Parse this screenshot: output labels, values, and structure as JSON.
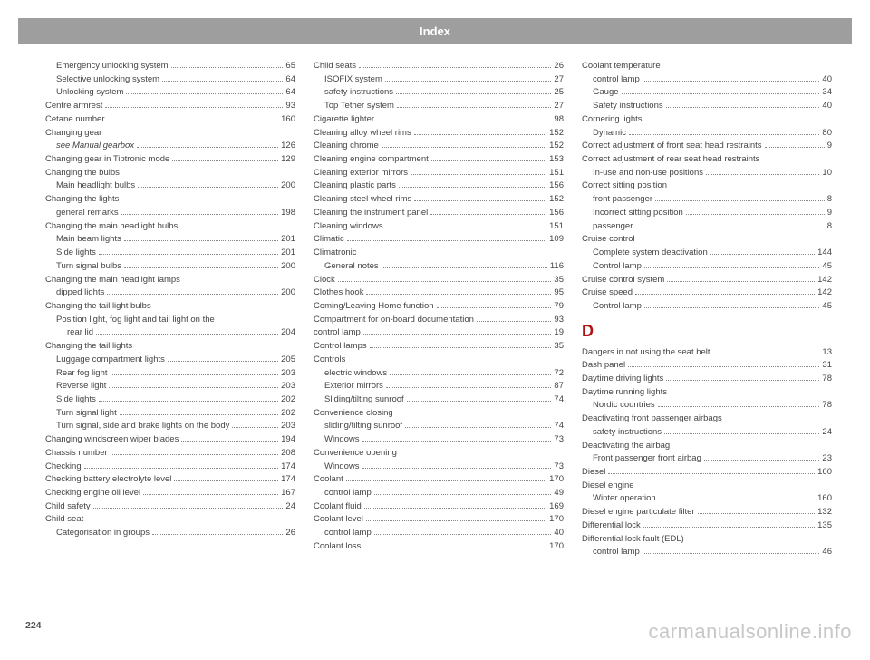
{
  "header": {
    "title": "Index"
  },
  "pageNumber": "224",
  "watermark": "carmanualsonline.info",
  "sectionLetter": "D",
  "columns": [
    {
      "entries": [
        {
          "label": "Emergency unlocking system",
          "page": "65",
          "indent": 1
        },
        {
          "label": "Selective unlocking system",
          "page": "64",
          "indent": 1
        },
        {
          "label": "Unlocking system",
          "page": "64",
          "indent": 1
        },
        {
          "label": "Centre armrest",
          "page": "93",
          "indent": 0
        },
        {
          "label": "Cetane number",
          "page": "160",
          "indent": 0
        },
        {
          "label": "Changing gear",
          "page": "",
          "indent": 0,
          "noPage": true
        },
        {
          "label": "see Manual gearbox",
          "page": "126",
          "indent": 1,
          "see": true
        },
        {
          "label": "Changing gear in Tiptronic mode",
          "page": "129",
          "indent": 0
        },
        {
          "label": "Changing the bulbs",
          "page": "",
          "indent": 0,
          "noPage": true
        },
        {
          "label": "Main headlight bulbs",
          "page": "200",
          "indent": 1
        },
        {
          "label": "Changing the lights",
          "page": "",
          "indent": 0,
          "noPage": true
        },
        {
          "label": "general remarks",
          "page": "198",
          "indent": 1
        },
        {
          "label": "Changing the main headlight bulbs",
          "page": "",
          "indent": 0,
          "noPage": true
        },
        {
          "label": "Main beam lights",
          "page": "201",
          "indent": 1
        },
        {
          "label": "Side lights",
          "page": "201",
          "indent": 1
        },
        {
          "label": "Turn signal bulbs",
          "page": "200",
          "indent": 1
        },
        {
          "label": "Changing the main headlight lamps",
          "page": "",
          "indent": 0,
          "noPage": true
        },
        {
          "label": "dipped lights",
          "page": "200",
          "indent": 1
        },
        {
          "label": "Changing the tail light bulbs",
          "page": "",
          "indent": 0,
          "noPage": true
        },
        {
          "label": "Position light, fog light and tail light on the",
          "page": "",
          "indent": 1,
          "noPage": true
        },
        {
          "label": "rear lid",
          "page": "204",
          "indent": 2
        },
        {
          "label": "Changing the tail lights",
          "page": "",
          "indent": 0,
          "noPage": true
        },
        {
          "label": "Luggage compartment lights",
          "page": "205",
          "indent": 1
        },
        {
          "label": "Rear fog light",
          "page": "203",
          "indent": 1
        },
        {
          "label": "Reverse light",
          "page": "203",
          "indent": 1
        },
        {
          "label": "Side lights",
          "page": "202",
          "indent": 1
        },
        {
          "label": "Turn signal light",
          "page": "202",
          "indent": 1
        },
        {
          "label": "Turn signal, side and brake lights on the body",
          "page": "203",
          "indent": 1
        },
        {
          "label": "Changing windscreen wiper blades",
          "page": "194",
          "indent": 0
        },
        {
          "label": "Chassis number",
          "page": "208",
          "indent": 0
        },
        {
          "label": "Checking",
          "page": "174",
          "indent": 0
        },
        {
          "label": "Checking battery electrolyte level",
          "page": "174",
          "indent": 0
        },
        {
          "label": "Checking engine oil level",
          "page": "167",
          "indent": 0
        },
        {
          "label": "Child safety",
          "page": "24",
          "indent": 0
        },
        {
          "label": "Child seat",
          "page": "",
          "indent": 0,
          "noPage": true
        },
        {
          "label": "Categorisation in groups",
          "page": "26",
          "indent": 1
        }
      ]
    },
    {
      "entries": [
        {
          "label": "Child seats",
          "page": "26",
          "indent": 0
        },
        {
          "label": "ISOFIX system",
          "page": "27",
          "indent": 1
        },
        {
          "label": "safety instructions",
          "page": "25",
          "indent": 1
        },
        {
          "label": "Top Tether system",
          "page": "27",
          "indent": 1
        },
        {
          "label": "Cigarette lighter",
          "page": "98",
          "indent": 0
        },
        {
          "label": "Cleaning alloy wheel rims",
          "page": "152",
          "indent": 0
        },
        {
          "label": "Cleaning chrome",
          "page": "152",
          "indent": 0
        },
        {
          "label": "Cleaning engine compartment",
          "page": "153",
          "indent": 0
        },
        {
          "label": "Cleaning exterior mirrors",
          "page": "151",
          "indent": 0
        },
        {
          "label": "Cleaning plastic parts",
          "page": "156",
          "indent": 0
        },
        {
          "label": "Cleaning steel wheel rims",
          "page": "152",
          "indent": 0
        },
        {
          "label": "Cleaning the instrument panel",
          "page": "156",
          "indent": 0
        },
        {
          "label": "Cleaning windows",
          "page": "151",
          "indent": 0
        },
        {
          "label": "Climatic",
          "page": "109",
          "indent": 0
        },
        {
          "label": "Climatronic",
          "page": "",
          "indent": 0,
          "noPage": true
        },
        {
          "label": "General notes",
          "page": "116",
          "indent": 1
        },
        {
          "label": "Clock",
          "page": "35",
          "indent": 0
        },
        {
          "label": "Clothes hook",
          "page": "95",
          "indent": 0
        },
        {
          "label": "Coming/Leaving Home function",
          "page": "79",
          "indent": 0
        },
        {
          "label": "Compartment for on-board documentation",
          "page": "93",
          "indent": 0
        },
        {
          "label": "control lamp",
          "page": "19",
          "indent": 0
        },
        {
          "label": "Control lamps",
          "page": "35",
          "indent": 0
        },
        {
          "label": "Controls",
          "page": "",
          "indent": 0,
          "noPage": true
        },
        {
          "label": "electric windows",
          "page": "72",
          "indent": 1
        },
        {
          "label": "Exterior mirrors",
          "page": "87",
          "indent": 1
        },
        {
          "label": "Sliding/tilting sunroof",
          "page": "74",
          "indent": 1
        },
        {
          "label": "Convenience closing",
          "page": "",
          "indent": 0,
          "noPage": true
        },
        {
          "label": "sliding/tilting sunroof",
          "page": "74",
          "indent": 1
        },
        {
          "label": "Windows",
          "page": "73",
          "indent": 1
        },
        {
          "label": "Convenience opening",
          "page": "",
          "indent": 0,
          "noPage": true
        },
        {
          "label": "Windows",
          "page": "73",
          "indent": 1
        },
        {
          "label": "Coolant",
          "page": "170",
          "indent": 0
        },
        {
          "label": "control lamp",
          "page": "49",
          "indent": 1
        },
        {
          "label": "Coolant fluid",
          "page": "169",
          "indent": 0
        },
        {
          "label": "Coolant level",
          "page": "170",
          "indent": 0
        },
        {
          "label": "control lamp",
          "page": "40",
          "indent": 1
        },
        {
          "label": "Coolant loss",
          "page": "170",
          "indent": 0
        }
      ]
    },
    {
      "entries": [
        {
          "label": "Coolant temperature",
          "page": "",
          "indent": 0,
          "noPage": true
        },
        {
          "label": "control lamp",
          "page": "40",
          "indent": 1
        },
        {
          "label": "Gauge",
          "page": "34",
          "indent": 1
        },
        {
          "label": "Safety instructions",
          "page": "40",
          "indent": 1
        },
        {
          "label": "Cornering lights",
          "page": "",
          "indent": 0,
          "noPage": true
        },
        {
          "label": "Dynamic",
          "page": "80",
          "indent": 1
        },
        {
          "label": "Correct adjustment of front seat head restraints",
          "page": "9",
          "indent": 0
        },
        {
          "label": "Correct adjustment of rear seat head restraints",
          "page": "",
          "indent": 0,
          "noPage": true
        },
        {
          "label": "In-use and non-use positions",
          "page": "10",
          "indent": 1
        },
        {
          "label": "Correct sitting position",
          "page": "",
          "indent": 0,
          "noPage": true
        },
        {
          "label": "front passenger",
          "page": "8",
          "indent": 1
        },
        {
          "label": "Incorrect sitting position",
          "page": "9",
          "indent": 1
        },
        {
          "label": "passenger",
          "page": "8",
          "indent": 1
        },
        {
          "label": "Cruise control",
          "page": "",
          "indent": 0,
          "noPage": true
        },
        {
          "label": "Complete system deactivation",
          "page": "144",
          "indent": 1
        },
        {
          "label": "Control lamp",
          "page": "45",
          "indent": 1
        },
        {
          "label": "Cruise control system",
          "page": "142",
          "indent": 0
        },
        {
          "label": "Cruise speed",
          "page": "142",
          "indent": 0
        },
        {
          "label": "Control lamp",
          "page": "45",
          "indent": 1
        },
        {
          "sectionBreak": true
        },
        {
          "label": "Dangers in not using the seat belt",
          "page": "13",
          "indent": 0
        },
        {
          "label": "Dash panel",
          "page": "31",
          "indent": 0
        },
        {
          "label": "Daytime driving lights",
          "page": "78",
          "indent": 0
        },
        {
          "label": "Daytime running lights",
          "page": "",
          "indent": 0,
          "noPage": true
        },
        {
          "label": "Nordic countries",
          "page": "78",
          "indent": 1
        },
        {
          "label": "Deactivating front passenger airbags",
          "page": "",
          "indent": 0,
          "noPage": true
        },
        {
          "label": "safety instructions",
          "page": "24",
          "indent": 1
        },
        {
          "label": "Deactivating the airbag",
          "page": "",
          "indent": 0,
          "noPage": true
        },
        {
          "label": "Front passenger front airbag",
          "page": "23",
          "indent": 1
        },
        {
          "label": "Diesel",
          "page": "160",
          "indent": 0
        },
        {
          "label": "Diesel engine",
          "page": "",
          "indent": 0,
          "noPage": true
        },
        {
          "label": "Winter operation",
          "page": "160",
          "indent": 1
        },
        {
          "label": "Diesel engine particulate filter",
          "page": "132",
          "indent": 0
        },
        {
          "label": "Differential lock",
          "page": "135",
          "indent": 0
        },
        {
          "label": "Differential lock fault (EDL)",
          "page": "",
          "indent": 0,
          "noPage": true
        },
        {
          "label": "control lamp",
          "page": "46",
          "indent": 1
        }
      ]
    }
  ]
}
